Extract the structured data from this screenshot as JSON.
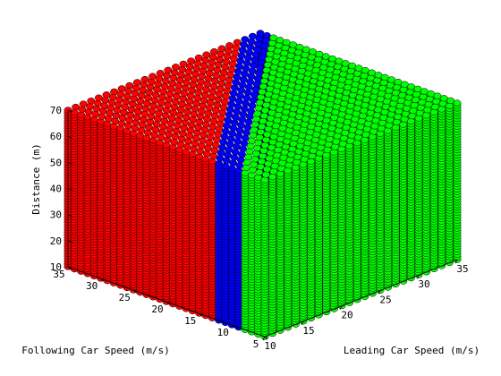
{
  "chart_data": {
    "type": "scatter3d",
    "title": "",
    "xlabel": "Leading Car Speed (m/s)",
    "ylabel": "Following Car Speed (m/s)",
    "zlabel": "Distance (m)",
    "xlim": [
      10,
      35
    ],
    "ylim": [
      5,
      35
    ],
    "zlim": [
      10,
      70
    ],
    "xticks": [
      10,
      15,
      20,
      25,
      30,
      35
    ],
    "yticks": [
      5,
      10,
      15,
      20,
      25,
      30,
      35
    ],
    "zticks": [
      10,
      20,
      30,
      40,
      50,
      60,
      70
    ],
    "grid": true,
    "step": 1,
    "marker": "o",
    "series": [
      {
        "color": "#ff0000",
        "region": "following speed above leading speed + 2 m/s"
      },
      {
        "color": "#0000ff",
        "region": "following speed within leading speed - 1 to + 2 m/s"
      },
      {
        "color": "#00ff00",
        "region": "following speed below leading speed - 1 m/s"
      }
    ]
  }
}
